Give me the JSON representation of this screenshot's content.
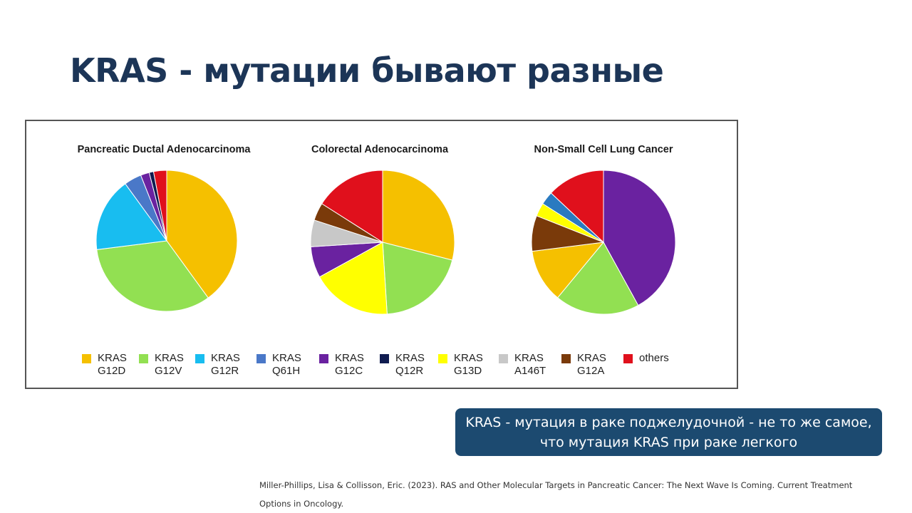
{
  "slide": {
    "title": "KRAS - мутации бывают разные",
    "callout_line1": "KRAS - мутация в раке поджелудочной - не то же самое,",
    "callout_line2": "что мутация KRAS при раке легкого",
    "citation": "Miller-Phillips, Lisa & Collisson, Eric. (2023). RAS and Other Molecular Targets in Pancreatic Cancer: The Next Wave Is Coming. Current Treatment Options in Oncology."
  },
  "legend": [
    {
      "label": "KRAS\nG12D",
      "color": "#f5c000"
    },
    {
      "label": "KRAS\nG12V",
      "color": "#92e052"
    },
    {
      "label": "KRAS\nG12R",
      "color": "#18bdf0"
    },
    {
      "label": "KRAS\nQ61H",
      "color": "#4a78c8"
    },
    {
      "label": "KRAS\nG12C",
      "color": "#6a22a0"
    },
    {
      "label": "KRAS\nQ12R",
      "color": "#101c50"
    },
    {
      "label": "KRAS\nG13D",
      "color": "#ffff00"
    },
    {
      "label": "KRAS\nA146T",
      "color": "#c8c8c8"
    },
    {
      "label": "KRAS\nG12A",
      "color": "#7a3a0a"
    },
    {
      "label": "others",
      "color": "#e0101c"
    }
  ],
  "chart_data": [
    {
      "type": "pie",
      "title": "Pancreatic Ductal Adenocarcinoma",
      "slices": [
        {
          "label": "KRAS G12D",
          "value": 40,
          "color": "#f5c000"
        },
        {
          "label": "KRAS G12V",
          "value": 33,
          "color": "#92e052"
        },
        {
          "label": "KRAS G12R",
          "value": 17,
          "color": "#18bdf0"
        },
        {
          "label": "KRAS Q61H",
          "value": 4,
          "color": "#4a78c8"
        },
        {
          "label": "KRAS G12C",
          "value": 2,
          "color": "#6a22a0"
        },
        {
          "label": "KRAS Q12R",
          "value": 1,
          "color": "#101c50"
        },
        {
          "label": "others",
          "value": 3,
          "color": "#e0101c"
        }
      ]
    },
    {
      "type": "pie",
      "title": "Colorectal Adenocarcinoma",
      "slices": [
        {
          "label": "KRAS G12D",
          "value": 29,
          "color": "#f5c000"
        },
        {
          "label": "KRAS G12V",
          "value": 20,
          "color": "#92e052"
        },
        {
          "label": "KRAS G13D",
          "value": 18,
          "color": "#ffff00"
        },
        {
          "label": "KRAS G12C",
          "value": 7,
          "color": "#6a22a0"
        },
        {
          "label": "KRAS A146T",
          "value": 6,
          "color": "#c8c8c8"
        },
        {
          "label": "KRAS G12A",
          "value": 4,
          "color": "#7a3a0a"
        },
        {
          "label": "others",
          "value": 16,
          "color": "#e0101c"
        }
      ]
    },
    {
      "type": "pie",
      "title": "Non-Small Cell Lung Cancer",
      "slices": [
        {
          "label": "KRAS G12C",
          "value": 42,
          "color": "#6a22a0"
        },
        {
          "label": "KRAS G12V",
          "value": 19,
          "color": "#92e052"
        },
        {
          "label": "KRAS G12D",
          "value": 12,
          "color": "#f5c000"
        },
        {
          "label": "KRAS G12A",
          "value": 8,
          "color": "#7a3a0a"
        },
        {
          "label": "KRAS G13D",
          "value": 3,
          "color": "#ffff00"
        },
        {
          "label": "KRAS G12R",
          "value": 3,
          "color": "#2a7ac0"
        },
        {
          "label": "others",
          "value": 13,
          "color": "#e0101c"
        }
      ]
    }
  ]
}
